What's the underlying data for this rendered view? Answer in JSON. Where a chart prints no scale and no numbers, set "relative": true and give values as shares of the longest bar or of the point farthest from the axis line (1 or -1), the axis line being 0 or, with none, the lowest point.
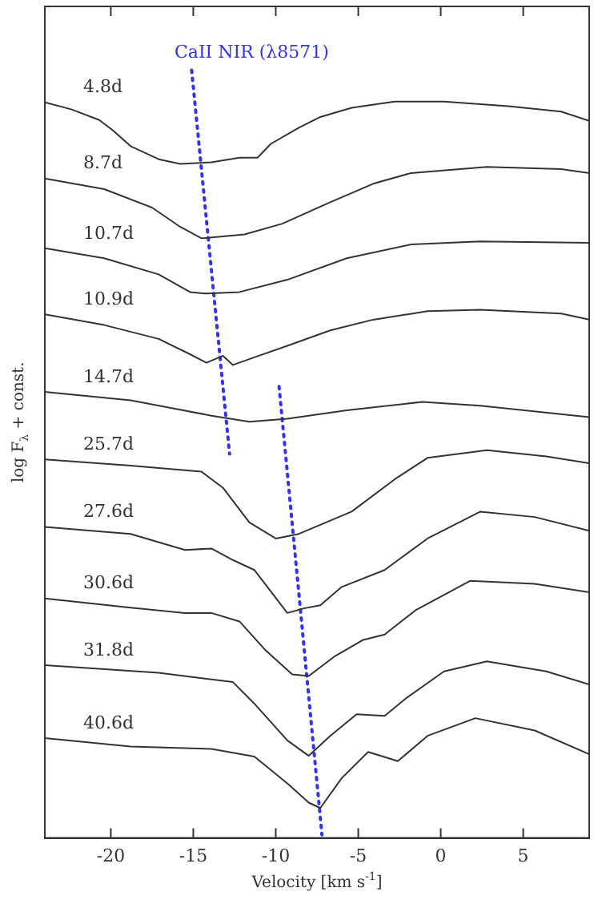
{
  "chart_data": {
    "type": "line",
    "relative": true,
    "xlabel": "Velocity [km s$^{-1}$]",
    "ylabel": "log F$_{λ}$ + const.",
    "xlim": [
      -24,
      9
    ],
    "xticks": [
      -20,
      -15,
      -10,
      -5,
      0,
      5
    ],
    "legend": false,
    "grid": false,
    "marker": "none",
    "line_style": "solid",
    "annotations": [
      "CaII NIR (λ8571)"
    ],
    "series": [
      {
        "name": "4.8d",
        "color": "#333333",
        "x": [
          -24.0,
          -22.4,
          -20.7,
          -19.9,
          -18.8,
          -17.1,
          -15.8,
          -13.9,
          -12.2,
          -11.1,
          -10.3,
          -8.6,
          -7.3,
          -5.4,
          -2.8,
          0.2,
          4.1,
          7.3,
          9.0
        ],
        "values": [
          0.958,
          0.949,
          0.935,
          0.922,
          0.901,
          0.884,
          0.878,
          0.88,
          0.886,
          0.886,
          0.904,
          0.925,
          0.939,
          0.951,
          0.959,
          0.959,
          0.953,
          0.946,
          0.934
        ]
      },
      {
        "name": "8.7d",
        "color": "#333333",
        "x": [
          -24.0,
          -20.4,
          -17.5,
          -15.8,
          -14.5,
          -11.9,
          -9.6,
          -6.7,
          -4.1,
          -1.8,
          2.8,
          7.3,
          9.0
        ],
        "values": [
          0.859,
          0.845,
          0.821,
          0.796,
          0.781,
          0.786,
          0.8,
          0.828,
          0.852,
          0.866,
          0.874,
          0.871,
          0.866
        ]
      },
      {
        "name": "10.7d",
        "color": "#333333",
        "x": [
          -24.0,
          -20.4,
          -17.1,
          -15.2,
          -14.2,
          -12.2,
          -9.3,
          -5.7,
          -1.8,
          2.4,
          9.0
        ],
        "values": [
          0.768,
          0.755,
          0.734,
          0.711,
          0.709,
          0.711,
          0.727,
          0.755,
          0.773,
          0.777,
          0.775
        ]
      },
      {
        "name": "10.9d",
        "color": "#333333",
        "x": [
          -24.0,
          -20.4,
          -17.1,
          -15.2,
          -14.2,
          -13.2,
          -12.6,
          -11.3,
          -9.3,
          -6.7,
          -4.1,
          -0.8,
          2.4,
          7.3,
          9.0
        ],
        "values": [
          0.682,
          0.668,
          0.65,
          0.63,
          0.619,
          0.628,
          0.616,
          0.626,
          0.641,
          0.661,
          0.675,
          0.686,
          0.688,
          0.683,
          0.675
        ]
      },
      {
        "name": "14.7d",
        "color": "#333333",
        "x": [
          -24.0,
          -18.8,
          -13.9,
          -11.6,
          -9.3,
          -5.7,
          -1.1,
          2.4,
          9.0
        ],
        "values": [
          0.581,
          0.57,
          0.55,
          0.542,
          0.546,
          0.557,
          0.568,
          0.563,
          0.548
        ]
      },
      {
        "name": "25.7d",
        "color": "#333333",
        "x": [
          -24.0,
          -18.8,
          -14.5,
          -13.2,
          -11.6,
          -10.0,
          -8.6,
          -5.4,
          -2.8,
          -0.8,
          2.8,
          6.4,
          9.0
        ],
        "values": [
          0.493,
          0.485,
          0.477,
          0.456,
          0.411,
          0.39,
          0.396,
          0.425,
          0.467,
          0.495,
          0.505,
          0.497,
          0.488
        ]
      },
      {
        "name": "27.6d",
        "color": "#333333",
        "x": [
          -24.0,
          -18.8,
          -15.5,
          -13.9,
          -12.6,
          -11.3,
          -9.3,
          -8.3,
          -7.3,
          -6.0,
          -3.4,
          -0.8,
          2.4,
          5.7,
          9.0
        ],
        "values": [
          0.405,
          0.396,
          0.375,
          0.377,
          0.362,
          0.349,
          0.293,
          0.299,
          0.303,
          0.327,
          0.349,
          0.39,
          0.425,
          0.418,
          0.4
        ]
      },
      {
        "name": "30.6d",
        "color": "#333333",
        "x": [
          -24.0,
          -18.8,
          -15.5,
          -13.9,
          -12.2,
          -10.6,
          -9.0,
          -8.0,
          -6.4,
          -4.7,
          -3.4,
          -1.5,
          1.8,
          5.7,
          9.0
        ],
        "values": [
          0.312,
          0.3,
          0.293,
          0.293,
          0.282,
          0.244,
          0.213,
          0.211,
          0.237,
          0.258,
          0.265,
          0.297,
          0.335,
          0.331,
          0.32
        ]
      },
      {
        "name": "31.8d",
        "color": "#333333",
        "x": [
          -24.0,
          -17.1,
          -12.6,
          -11.3,
          -9.3,
          -8.0,
          -6.7,
          -5.1,
          -3.4,
          -2.1,
          0.2,
          2.8,
          6.4,
          9.0
        ],
        "values": [
          0.225,
          0.215,
          0.203,
          0.175,
          0.127,
          0.107,
          0.133,
          0.161,
          0.159,
          0.182,
          0.217,
          0.23,
          0.217,
          0.2
        ]
      },
      {
        "name": "40.6d",
        "color": "#333333",
        "x": [
          -24.0,
          -18.8,
          -13.9,
          -11.3,
          -9.3,
          -8.0,
          -7.3,
          -6.0,
          -4.4,
          -2.6,
          -0.8,
          2.1,
          5.7,
          9.0
        ],
        "values": [
          0.13,
          0.119,
          0.116,
          0.106,
          0.071,
          0.046,
          0.039,
          0.078,
          0.112,
          0.1,
          0.133,
          0.156,
          0.14,
          0.109
        ]
      },
      {
        "color": "#3333ee",
        "line_style": "dotted",
        "x": [
          -15.1,
          -12.8
        ],
        "values": [
          1.0,
          0.5
        ]
      },
      {
        "color": "#3333ee",
        "line_style": "dotted",
        "x": [
          -9.8,
          -7.2
        ],
        "values": [
          0.588,
          0.004
        ]
      }
    ]
  }
}
